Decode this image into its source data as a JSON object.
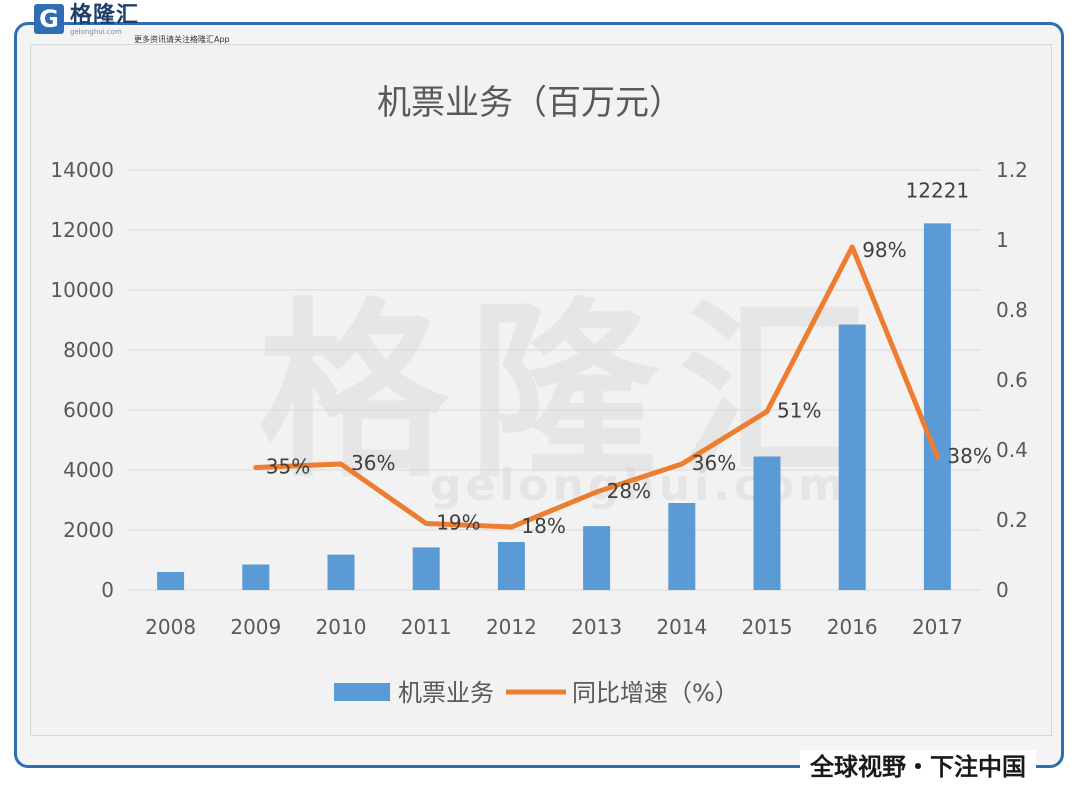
{
  "header": {
    "logo_mark": "G",
    "logo_name": "格隆汇",
    "logo_sub": "gelonghui.com",
    "tagline": "更多资讯请关注格隆汇App"
  },
  "watermark": {
    "main": "格隆汇",
    "sub": "gelonghui.com"
  },
  "footer": {
    "slogan": "全球视野・下注中国"
  },
  "colors": {
    "bar": "#5b9bd5",
    "line": "#ed7d31",
    "frame": "#2f6db5"
  },
  "chart_data": {
    "type": "bar",
    "title": "机票业务（百万元）",
    "categories": [
      "2008",
      "2009",
      "2010",
      "2011",
      "2012",
      "2013",
      "2014",
      "2015",
      "2016",
      "2017"
    ],
    "series": [
      {
        "name": "机票业务",
        "type": "bar",
        "axis": "left",
        "values": [
          600,
          850,
          1180,
          1420,
          1600,
          2130,
          2900,
          4450,
          8850,
          12221
        ],
        "labels": [
          "",
          "",
          "",
          "",
          "",
          "",
          "",
          "",
          "",
          "12221"
        ]
      },
      {
        "name": "同比增速（%）",
        "type": "line",
        "axis": "right",
        "values": [
          null,
          0.35,
          0.36,
          0.19,
          0.18,
          0.28,
          0.36,
          0.51,
          0.98,
          0.38
        ],
        "labels": [
          "",
          "35%",
          "36%",
          "19%",
          "18%",
          "28%",
          "36%",
          "51%",
          "98%",
          "38%"
        ]
      }
    ],
    "y_left": {
      "min": 0,
      "max": 14000,
      "ticks": [
        "0",
        "2000",
        "4000",
        "6000",
        "8000",
        "10000",
        "12000",
        "14000"
      ]
    },
    "y_right": {
      "min": 0,
      "max": 1.2,
      "ticks": [
        "0",
        "0.2",
        "0.4",
        "0.6",
        "0.8",
        "1",
        "1.2"
      ]
    },
    "grid": true,
    "legend_position": "bottom"
  }
}
